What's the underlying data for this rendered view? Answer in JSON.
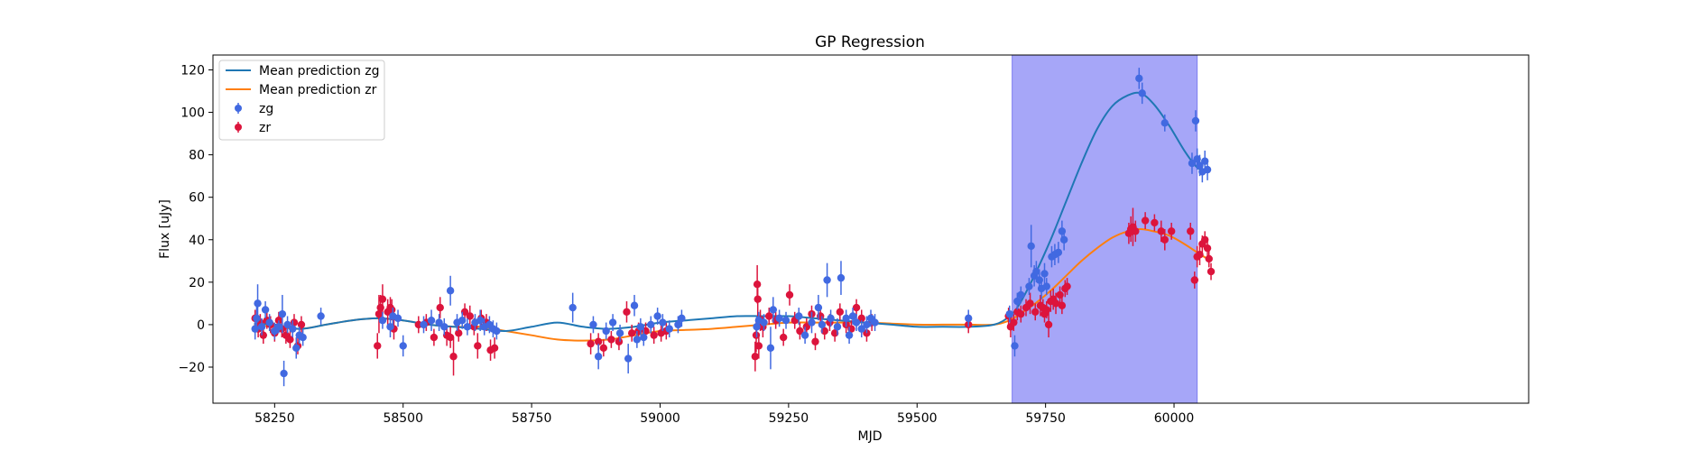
{
  "colors": {
    "zg": "#4169e1",
    "zr": "#dc143c",
    "mean_zg": "#1f77b4",
    "mean_zr": "#ff7f0e",
    "shade": "#a6a6f8",
    "shade_edge": "#7f7ff0",
    "axis": "#000000",
    "legend_border": "#cccccc"
  },
  "chart_data": {
    "type": "scatter",
    "title": "GP Regression",
    "xlabel": "MJD",
    "ylabel": "Flux [uJy]",
    "xlim": [
      58130,
      60690
    ],
    "ylim": [
      -37,
      127
    ],
    "xticks": [
      58250,
      58500,
      58750,
      59000,
      59250,
      59500,
      59750,
      60000
    ],
    "yticks": [
      -20,
      0,
      20,
      40,
      60,
      80,
      100,
      120
    ],
    "grid": false,
    "legend_position": "upper-left",
    "legend": [
      {
        "label": "Mean prediction zg",
        "kind": "line",
        "series": "mean_zg"
      },
      {
        "label": "Mean prediction zr",
        "kind": "line",
        "series": "mean_zr"
      },
      {
        "label": "zg",
        "kind": "marker",
        "series": "zg"
      },
      {
        "label": "zr",
        "kind": "marker",
        "series": "zr"
      }
    ],
    "shaded_region": {
      "x": [
        59685,
        60045
      ]
    },
    "mean_zg": {
      "name": "Mean prediction zg",
      "x": [
        58210,
        58250,
        58300,
        58350,
        58400,
        58450,
        58500,
        58550,
        58600,
        58650,
        58700,
        58750,
        58800,
        58850,
        58900,
        58950,
        59000,
        59050,
        59100,
        59150,
        59200,
        59250,
        59300,
        59350,
        59400,
        59450,
        59500,
        59550,
        59600,
        59650,
        59680,
        59700,
        59730,
        59760,
        59790,
        59820,
        59850,
        59880,
        59910,
        59935,
        59960,
        59990,
        60020,
        60045,
        60065
      ],
      "y": [
        0.5,
        0,
        -2,
        0,
        2,
        3,
        2,
        0,
        -1,
        -2,
        -3,
        -1,
        1,
        -1,
        -2,
        -1,
        1,
        2,
        3,
        4,
        4,
        4,
        3,
        2,
        1,
        0,
        -1,
        -1,
        -1,
        0,
        4,
        10,
        24,
        40,
        58,
        76,
        92,
        103,
        108,
        109,
        104,
        94,
        82,
        74,
        72
      ]
    },
    "mean_zr": {
      "name": "Mean prediction zr",
      "x": [
        58210,
        58250,
        58300,
        58350,
        58400,
        58450,
        58500,
        58550,
        58600,
        58650,
        58700,
        58750,
        58800,
        58850,
        58900,
        58950,
        59000,
        59050,
        59100,
        59150,
        59200,
        59250,
        59300,
        59350,
        59400,
        59450,
        59500,
        59550,
        59600,
        59650,
        59680,
        59700,
        59730,
        59760,
        59790,
        59820,
        59850,
        59880,
        59910,
        59935,
        59960,
        59990,
        60020,
        60045,
        60065
      ],
      "y": [
        0,
        -1,
        -2,
        0,
        2,
        3,
        2,
        0,
        -1,
        -1,
        -3,
        -5,
        -7,
        -7.5,
        -7,
        -5,
        -3,
        -2.5,
        -2,
        -1,
        0,
        1,
        1,
        1,
        1,
        0.5,
        0,
        0,
        0,
        0,
        2,
        5,
        10,
        16,
        23,
        30,
        36,
        41,
        44,
        45,
        44,
        42,
        38,
        34,
        31
      ]
    },
    "zg": {
      "name": "zg",
      "points": [
        [
          58212,
          -2,
          5
        ],
        [
          58215,
          3,
          6
        ],
        [
          58217,
          10,
          9
        ],
        [
          58225,
          -1,
          4
        ],
        [
          58232,
          7,
          4
        ],
        [
          58240,
          1,
          4
        ],
        [
          58250,
          -3,
          4
        ],
        [
          58258,
          -1,
          3
        ],
        [
          58265,
          5,
          9
        ],
        [
          58268,
          -23,
          6
        ],
        [
          58275,
          0,
          4
        ],
        [
          58285,
          -2,
          4
        ],
        [
          58292,
          -11,
          5
        ],
        [
          58298,
          -5,
          4
        ],
        [
          58305,
          -6,
          4
        ],
        [
          58340,
          4,
          4
        ],
        [
          58460,
          2,
          4
        ],
        [
          58475,
          -1,
          5
        ],
        [
          58480,
          4,
          4
        ],
        [
          58490,
          3,
          4
        ],
        [
          58500,
          -10,
          5
        ],
        [
          58540,
          0,
          4
        ],
        [
          58555,
          2,
          5
        ],
        [
          58570,
          1,
          4
        ],
        [
          58580,
          -1,
          4
        ],
        [
          58592,
          16,
          7
        ],
        [
          58605,
          1,
          4
        ],
        [
          58615,
          2,
          4
        ],
        [
          58625,
          -1,
          4
        ],
        [
          58640,
          1,
          4
        ],
        [
          58650,
          2,
          5
        ],
        [
          58658,
          -1,
          4
        ],
        [
          58668,
          0,
          4
        ],
        [
          58675,
          -2,
          4
        ],
        [
          58682,
          -3,
          4
        ],
        [
          58830,
          8,
          7
        ],
        [
          58870,
          0,
          4
        ],
        [
          58880,
          -15,
          6
        ],
        [
          58895,
          -3,
          4
        ],
        [
          58908,
          1,
          4
        ],
        [
          58922,
          -4,
          4
        ],
        [
          58938,
          -16,
          7
        ],
        [
          58950,
          9,
          5
        ],
        [
          58955,
          -7,
          4
        ],
        [
          58962,
          -1,
          4
        ],
        [
          58968,
          -6,
          4
        ],
        [
          58982,
          0,
          4
        ],
        [
          58995,
          4,
          4
        ],
        [
          59005,
          1,
          4
        ],
        [
          59018,
          -2,
          4
        ],
        [
          59035,
          0,
          4
        ],
        [
          59042,
          3,
          4
        ],
        [
          59188,
          -1,
          5
        ],
        [
          59192,
          2,
          4
        ],
        [
          59202,
          1,
          4
        ],
        [
          59215,
          -11,
          10
        ],
        [
          59220,
          7,
          6
        ],
        [
          59232,
          3,
          4
        ],
        [
          59245,
          2,
          4
        ],
        [
          59270,
          4,
          4
        ],
        [
          59282,
          -5,
          4
        ],
        [
          59295,
          1,
          5
        ],
        [
          59308,
          8,
          6
        ],
        [
          59315,
          0,
          4
        ],
        [
          59325,
          21,
          8
        ],
        [
          59332,
          3,
          4
        ],
        [
          59345,
          -1,
          4
        ],
        [
          59352,
          22,
          8
        ],
        [
          59362,
          3,
          4
        ],
        [
          59368,
          -5,
          4
        ],
        [
          59375,
          4,
          4
        ],
        [
          59382,
          1,
          4
        ],
        [
          59392,
          -2,
          4
        ],
        [
          59402,
          0,
          4
        ],
        [
          59410,
          3,
          4
        ],
        [
          59418,
          1,
          4
        ],
        [
          59600,
          3,
          4
        ],
        [
          59680,
          5,
          4
        ],
        [
          59690,
          -10,
          5
        ],
        [
          59695,
          11,
          4
        ],
        [
          59702,
          14,
          4
        ],
        [
          59718,
          18,
          4
        ],
        [
          59722,
          37,
          10
        ],
        [
          59728,
          23,
          5
        ],
        [
          59732,
          25,
          5
        ],
        [
          59738,
          21,
          5
        ],
        [
          59742,
          17,
          5
        ],
        [
          59748,
          24,
          5
        ],
        [
          59752,
          18,
          4
        ],
        [
          59762,
          32,
          5
        ],
        [
          59768,
          33,
          5
        ],
        [
          59775,
          34,
          5
        ],
        [
          59782,
          44,
          5
        ],
        [
          59786,
          40,
          5
        ],
        [
          59932,
          116,
          5
        ],
        [
          59938,
          109,
          5
        ],
        [
          59982,
          95,
          4
        ],
        [
          60035,
          76,
          5
        ],
        [
          60042,
          96,
          5
        ],
        [
          60045,
          78,
          5
        ],
        [
          60050,
          75,
          5
        ],
        [
          60055,
          72,
          5
        ],
        [
          60060,
          77,
          5
        ],
        [
          60065,
          73,
          5
        ]
      ]
    },
    "zr": {
      "name": "zr",
      "points": [
        [
          58212,
          3,
          4
        ],
        [
          58218,
          -2,
          4
        ],
        [
          58222,
          1,
          4
        ],
        [
          58228,
          -5,
          4
        ],
        [
          58235,
          2,
          4
        ],
        [
          58242,
          0,
          4
        ],
        [
          58250,
          -4,
          4
        ],
        [
          58258,
          2,
          4
        ],
        [
          58264,
          -2,
          4
        ],
        [
          58272,
          -5,
          4
        ],
        [
          58280,
          -7,
          4
        ],
        [
          58288,
          1,
          4
        ],
        [
          58295,
          -10,
          4
        ],
        [
          58302,
          0,
          4
        ],
        [
          58450,
          -10,
          6
        ],
        [
          58453,
          5,
          9
        ],
        [
          58456,
          8,
          6
        ],
        [
          58460,
          12,
          7
        ],
        [
          58470,
          6,
          6
        ],
        [
          58475,
          8,
          5
        ],
        [
          58478,
          7,
          5
        ],
        [
          58482,
          -2,
          5
        ],
        [
          58530,
          0,
          4
        ],
        [
          58545,
          1,
          4
        ],
        [
          58560,
          -6,
          4
        ],
        [
          58572,
          8,
          5
        ],
        [
          58585,
          -5,
          5
        ],
        [
          58592,
          -6,
          5
        ],
        [
          58598,
          -15,
          9
        ],
        [
          58608,
          -4,
          4
        ],
        [
          58620,
          6,
          4
        ],
        [
          58630,
          4,
          5
        ],
        [
          58638,
          -1,
          4
        ],
        [
          58645,
          -10,
          6
        ],
        [
          58652,
          3,
          4
        ],
        [
          58662,
          1,
          4
        ],
        [
          58670,
          -12,
          5
        ],
        [
          58678,
          -11,
          5
        ],
        [
          58865,
          -9,
          5
        ],
        [
          58880,
          -8,
          4
        ],
        [
          58890,
          -11,
          4
        ],
        [
          58905,
          -7,
          4
        ],
        [
          58920,
          -8,
          4
        ],
        [
          58935,
          6,
          5
        ],
        [
          58945,
          -4,
          4
        ],
        [
          58958,
          -3,
          4
        ],
        [
          58972,
          -3,
          4
        ],
        [
          58988,
          -5,
          4
        ],
        [
          59002,
          -4,
          4
        ],
        [
          59012,
          -3,
          4
        ],
        [
          59185,
          -15,
          7
        ],
        [
          59187,
          -5,
          8
        ],
        [
          59189,
          19,
          9
        ],
        [
          59190,
          12,
          8
        ],
        [
          59192,
          -10,
          6
        ],
        [
          59195,
          2,
          5
        ],
        [
          59200,
          -1,
          5
        ],
        [
          59212,
          4,
          4
        ],
        [
          59225,
          2,
          4
        ],
        [
          59240,
          -6,
          4
        ],
        [
          59252,
          14,
          5
        ],
        [
          59262,
          2,
          4
        ],
        [
          59272,
          -3,
          4
        ],
        [
          59285,
          -1,
          4
        ],
        [
          59295,
          5,
          4
        ],
        [
          59302,
          -8,
          4
        ],
        [
          59312,
          4,
          4
        ],
        [
          59320,
          -3,
          4
        ],
        [
          59330,
          1,
          4
        ],
        [
          59340,
          -4,
          4
        ],
        [
          59350,
          6,
          4
        ],
        [
          59362,
          0,
          4
        ],
        [
          59372,
          -2,
          4
        ],
        [
          59382,
          8,
          4
        ],
        [
          59392,
          3,
          4
        ],
        [
          59402,
          -4,
          4
        ],
        [
          59412,
          1,
          4
        ],
        [
          59600,
          0,
          4
        ],
        [
          59678,
          4,
          4
        ],
        [
          59682,
          -1,
          5
        ],
        [
          59688,
          1,
          4
        ],
        [
          59695,
          6,
          4
        ],
        [
          59702,
          5,
          4
        ],
        [
          59712,
          8,
          4
        ],
        [
          59720,
          10,
          5
        ],
        [
          59730,
          6,
          4
        ],
        [
          59740,
          9,
          5
        ],
        [
          59745,
          8,
          4
        ],
        [
          59748,
          5,
          4
        ],
        [
          59752,
          7,
          4
        ],
        [
          59756,
          0,
          6
        ],
        [
          59760,
          11,
          5
        ],
        [
          59765,
          12,
          5
        ],
        [
          59770,
          10,
          5
        ],
        [
          59778,
          14,
          4
        ],
        [
          59782,
          9,
          4
        ],
        [
          59788,
          17,
          4
        ],
        [
          59792,
          18,
          4
        ],
        [
          59912,
          43,
          5
        ],
        [
          59916,
          45,
          6
        ],
        [
          59920,
          46,
          9
        ],
        [
          59925,
          44,
          5
        ],
        [
          59944,
          49,
          4
        ],
        [
          59962,
          48,
          4
        ],
        [
          59975,
          44,
          5
        ],
        [
          59982,
          40,
          5
        ],
        [
          59995,
          44,
          4
        ],
        [
          60032,
          44,
          4
        ],
        [
          60040,
          21,
          4
        ],
        [
          60045,
          32,
          5
        ],
        [
          60050,
          33,
          5
        ],
        [
          60055,
          38,
          4
        ],
        [
          60060,
          40,
          4
        ],
        [
          60065,
          36,
          4
        ],
        [
          60068,
          31,
          4
        ],
        [
          60072,
          25,
          4
        ]
      ]
    }
  }
}
